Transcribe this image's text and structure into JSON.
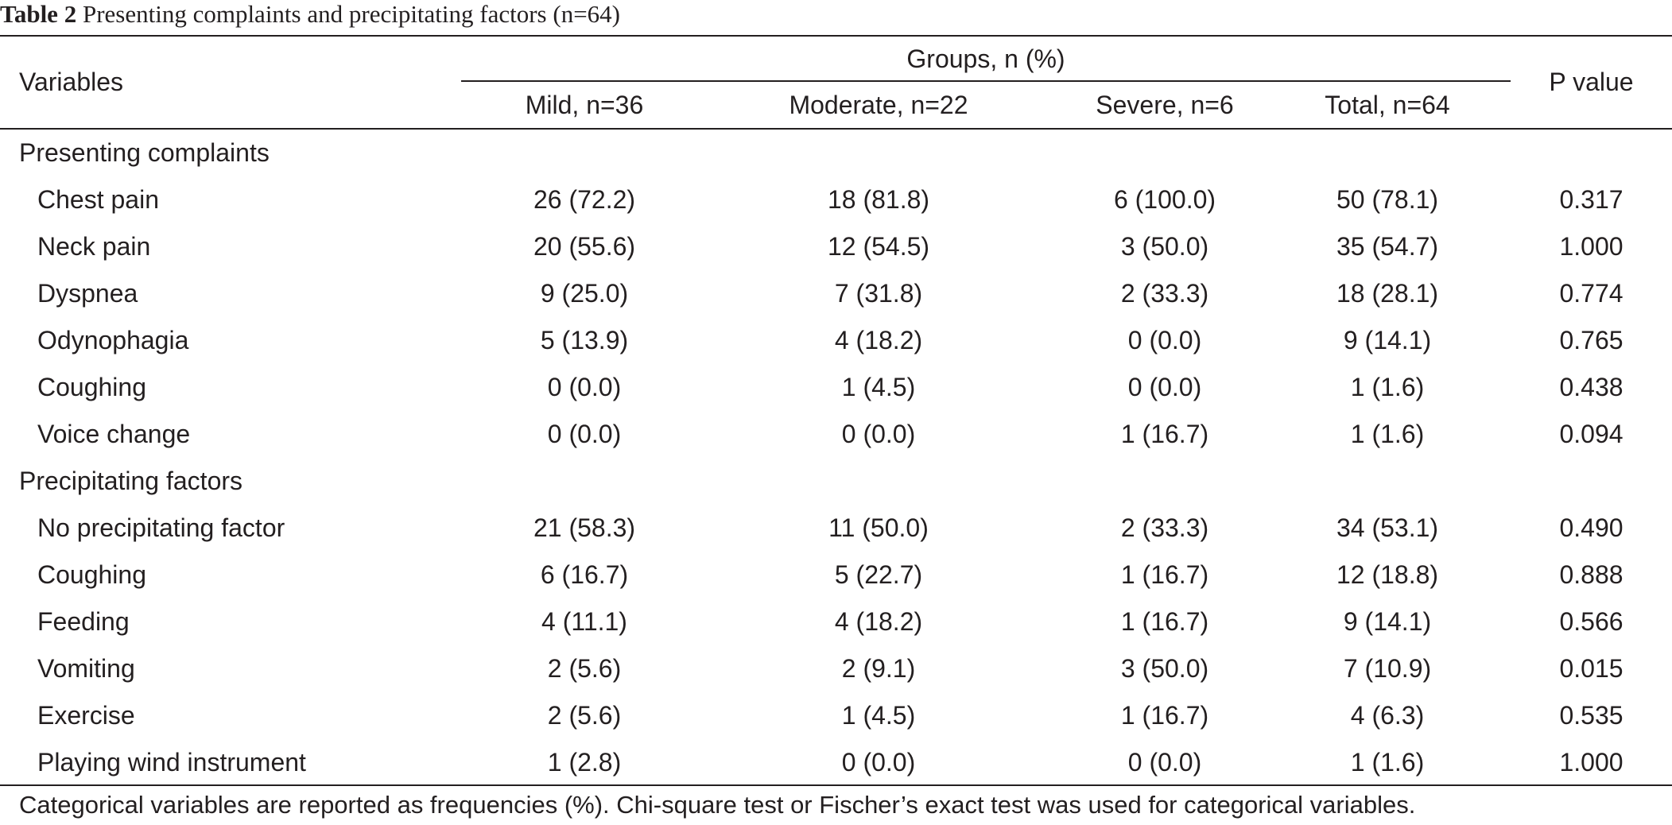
{
  "table": {
    "title_number": "Table 2",
    "title_text": "Presenting complaints and precipitating factors (n=64)",
    "headers": {
      "variables": "Variables",
      "groups": "Groups, n (%)",
      "mild": "Mild, n=36",
      "moderate": "Moderate, n=22",
      "severe": "Severe, n=6",
      "total": "Total, n=64",
      "p_value": "P value"
    },
    "rows": [
      {
        "label": "Presenting complaints",
        "section": true,
        "mild": "",
        "moderate": "",
        "severe": "",
        "total": "",
        "p": ""
      },
      {
        "label": "Chest pain",
        "mild": "26 (72.2)",
        "moderate": "18 (81.8)",
        "severe": "6 (100.0)",
        "total": "50 (78.1)",
        "p": "0.317"
      },
      {
        "label": "Neck pain",
        "mild": "20 (55.6)",
        "moderate": "12 (54.5)",
        "severe": "3 (50.0)",
        "total": "35 (54.7)",
        "p": "1.000"
      },
      {
        "label": "Dyspnea",
        "mild": "9 (25.0)",
        "moderate": "7 (31.8)",
        "severe": "2 (33.3)",
        "total": "18 (28.1)",
        "p": "0.774"
      },
      {
        "label": "Odynophagia",
        "mild": "5 (13.9)",
        "moderate": "4 (18.2)",
        "severe": "0 (0.0)",
        "total": "9 (14.1)",
        "p": "0.765"
      },
      {
        "label": "Coughing",
        "mild": "0 (0.0)",
        "moderate": "1 (4.5)",
        "severe": "0 (0.0)",
        "total": "1 (1.6)",
        "p": "0.438"
      },
      {
        "label": "Voice change",
        "mild": "0 (0.0)",
        "moderate": "0 (0.0)",
        "severe": "1 (16.7)",
        "total": "1 (1.6)",
        "p": "0.094"
      },
      {
        "label": "Precipitating factors",
        "section": true,
        "mild": "",
        "moderate": "",
        "severe": "",
        "total": "",
        "p": ""
      },
      {
        "label": "No precipitating factor",
        "mild": "21 (58.3)",
        "moderate": "11 (50.0)",
        "severe": "2 (33.3)",
        "total": "34 (53.1)",
        "p": "0.490"
      },
      {
        "label": "Coughing",
        "mild": "6 (16.7)",
        "moderate": "5 (22.7)",
        "severe": "1 (16.7)",
        "total": "12 (18.8)",
        "p": "0.888"
      },
      {
        "label": "Feeding",
        "mild": "4 (11.1)",
        "moderate": "4 (18.2)",
        "severe": "1 (16.7)",
        "total": "9 (14.1)",
        "p": "0.566"
      },
      {
        "label": "Vomiting",
        "mild": "2 (5.6)",
        "moderate": "2 (9.1)",
        "severe": "3 (50.0)",
        "total": "7 (10.9)",
        "p": "0.015"
      },
      {
        "label": "Exercise",
        "mild": "2 (5.6)",
        "moderate": "1 (4.5)",
        "severe": "1 (16.7)",
        "total": "4 (6.3)",
        "p": "0.535"
      },
      {
        "label": "Playing wind instrument",
        "mild": "1 (2.8)",
        "moderate": "0 (0.0)",
        "severe": "0 (0.0)",
        "total": "1 (1.6)",
        "p": "1.000"
      }
    ],
    "footnote": "Categorical variables are reported as frequencies (%). Chi-square test or Fischer’s exact test was used for categorical variables."
  }
}
